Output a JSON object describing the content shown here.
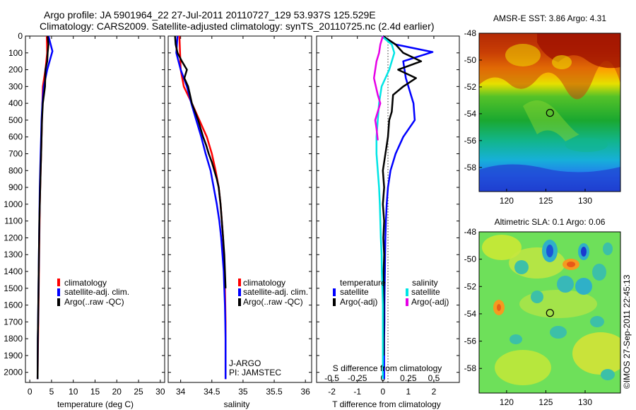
{
  "figure": {
    "title_line1": "Argo profile: JA 5901964_22 27-Jul-2011 20110727_129 53.937S 125.529E",
    "title_line2": "Climatology: CARS2009. Satellite-adjusted climatology: synTS_20110725.nc (2.4d earlier)",
    "credit": "©IMOS 27-Sep-2011 22:45:13",
    "float_info_line1": "J-ARGO",
    "float_info_line2": "PI: JAMSTEC"
  },
  "colors": {
    "climatology": "#ff0000",
    "satellite": "#0000ff",
    "argo": "#000000",
    "satellite_salinity": "#00e5e5",
    "argo_salinity": "#e600e6"
  },
  "chart_data": [
    {
      "id": "temperature",
      "type": "line",
      "xlabel": "temperature (deg C)",
      "ylabel": "",
      "xlim": [
        -1,
        31
      ],
      "ylim": [
        2060,
        0
      ],
      "xticks": [
        0,
        5,
        10,
        15,
        20,
        25,
        30
      ],
      "yticks": [
        0,
        100,
        200,
        300,
        400,
        500,
        600,
        700,
        800,
        900,
        1000,
        1100,
        1200,
        1300,
        1400,
        1500,
        1600,
        1700,
        1800,
        1900,
        2000
      ],
      "legend": [
        "climatology",
        "satellite-adj. clim.",
        "Argo(..raw -QC)"
      ],
      "legend_position": "lower-center",
      "series": [
        {
          "name": "climatology",
          "color": "#ff0000",
          "x": [
            3.9,
            4.0,
            3.6,
            3.0,
            2.9,
            2.8,
            2.7,
            2.6,
            2.5,
            2.4,
            2.3,
            2.25,
            2.2,
            2.15,
            2.1,
            2.05,
            2.0,
            1.95,
            1.9,
            1.85,
            1.8
          ],
          "y": [
            0,
            100,
            200,
            300,
            400,
            500,
            600,
            700,
            800,
            900,
            1000,
            1100,
            1200,
            1300,
            1400,
            1500,
            1600,
            1700,
            1800,
            1900,
            2040
          ]
        },
        {
          "name": "satellite-adj. clim.",
          "color": "#0000ff",
          "x": [
            4.3,
            4.8,
            5.2,
            4.0,
            3.2,
            2.9,
            2.7,
            2.6,
            2.5,
            2.4,
            2.3,
            2.25,
            2.2,
            2.15,
            2.1,
            2.05,
            2.0,
            1.95,
            1.9,
            1.85,
            1.8
          ],
          "y": [
            0,
            50,
            90,
            200,
            300,
            400,
            500,
            600,
            700,
            800,
            900,
            1000,
            1100,
            1200,
            1300,
            1400,
            1500,
            1600,
            1700,
            1800,
            2040
          ]
        },
        {
          "name": "Argo(..raw -QC)",
          "color": "#000000",
          "x": [
            4.1,
            4.3,
            4.1,
            4.0,
            3.6,
            3.5,
            3.0,
            2.8,
            2.7,
            2.6,
            2.5,
            2.4,
            2.3,
            2.2,
            2.15,
            2.1,
            2.05,
            2.0,
            1.95,
            1.9,
            1.85,
            1.8
          ],
          "y": [
            0,
            50,
            100,
            150,
            200,
            300,
            400,
            500,
            600,
            700,
            800,
            900,
            1000,
            1100,
            1200,
            1300,
            1400,
            1500,
            1600,
            1700,
            1800,
            2040
          ]
        }
      ]
    },
    {
      "id": "salinity",
      "type": "line",
      "xlabel": "salinity",
      "ylabel": "",
      "xlim": [
        33.8,
        36.1
      ],
      "ylim": [
        2060,
        0
      ],
      "xticks": [
        34,
        34.5,
        35,
        35.5,
        36
      ],
      "xticklabels": [
        "34",
        "34.5",
        "35",
        "35.5",
        "36"
      ],
      "legend": [
        "climatology",
        "satellite-adj. clim.",
        "Argo(..raw -QC)"
      ],
      "legend_position": "lower-center",
      "series": [
        {
          "name": "climatology",
          "color": "#ff0000",
          "x": [
            33.98,
            33.99,
            34.0,
            34.05,
            34.18,
            34.3,
            34.42,
            34.5,
            34.56,
            34.61,
            34.64,
            34.66,
            34.68,
            34.69,
            34.7,
            34.71,
            34.715,
            34.72,
            34.72,
            34.72,
            34.72
          ],
          "y": [
            0,
            100,
            200,
            300,
            400,
            500,
            600,
            700,
            800,
            900,
            1000,
            1100,
            1200,
            1300,
            1400,
            1500,
            1600,
            1700,
            1800,
            1900,
            2040
          ]
        },
        {
          "name": "satellite-adj. clim.",
          "color": "#0000ff",
          "x": [
            33.95,
            33.93,
            34.0,
            34.1,
            34.17,
            34.25,
            34.33,
            34.4,
            34.48,
            34.53,
            34.58,
            34.62,
            34.65,
            34.67,
            34.69,
            34.7,
            34.71,
            34.715,
            34.72,
            34.72,
            34.72
          ],
          "y": [
            0,
            100,
            200,
            300,
            400,
            500,
            600,
            700,
            800,
            900,
            1000,
            1100,
            1200,
            1300,
            1400,
            1500,
            1600,
            1700,
            1800,
            1900,
            2040
          ]
        },
        {
          "name": "Argo(..raw -QC)",
          "color": "#000000",
          "x": [
            33.91,
            33.92,
            33.95,
            34.02,
            34.1,
            34.06,
            34.12,
            34.15,
            34.18,
            34.23,
            34.28,
            34.32,
            34.36,
            34.41,
            34.45,
            34.5,
            34.54,
            34.58,
            34.61,
            34.64,
            34.66,
            34.68,
            34.7,
            34.71,
            34.72
          ],
          "y": [
            0,
            50,
            100,
            150,
            200,
            250,
            300,
            350,
            400,
            450,
            500,
            550,
            600,
            650,
            700,
            750,
            800,
            850,
            900,
            1000,
            1100,
            1200,
            1300,
            1400,
            1500
          ]
        }
      ]
    },
    {
      "id": "difference",
      "type": "line",
      "xlabel": "T difference from climatology",
      "x2label": "S difference from climatology",
      "ylabel": "",
      "xlim": [
        -2.6,
        3.0
      ],
      "ylim": [
        2060,
        0
      ],
      "xticks": [
        -2,
        -1,
        0,
        1,
        2
      ],
      "x2ticks": [
        -0.5,
        -0.25,
        0,
        0.25,
        0.5
      ],
      "x2ticklabels": [
        "-0.5",
        "-0.25",
        "0",
        "0.25",
        "0.5"
      ],
      "legend_temperature_title": "temperature",
      "legend_salinity_title": "salinity",
      "legend": [
        "satellite",
        "Argo(-adj)",
        "satellite",
        "Argo(-adj)"
      ],
      "legend_position": "lower-center",
      "series": [
        {
          "name": "satellite",
          "color": "#0000ff",
          "x": [
            0,
            0.5,
            1.95,
            0.8,
            0.9,
            1.2,
            1.25,
            0.8,
            0.5,
            0.3,
            0.2,
            0.15,
            0.12,
            0.1,
            0.09,
            0.08,
            0.07,
            0.06,
            0.06,
            0.05,
            0.05,
            0.05
          ],
          "y": [
            0,
            50,
            95,
            150,
            250,
            400,
            500,
            600,
            700,
            800,
            900,
            1000,
            1100,
            1200,
            1300,
            1400,
            1500,
            1600,
            1700,
            1800,
            1900,
            2040
          ]
        },
        {
          "name": "Argo(-adj)",
          "color": "#000000",
          "x": [
            0,
            0.5,
            0.8,
            1.5,
            0.6,
            1.3,
            0.8,
            0.4,
            0.35,
            0.25,
            0.2,
            0.1,
            0.0,
            0.05,
            0.0,
            0.05,
            0.02,
            0.05,
            0.03,
            0.03,
            0.03
          ],
          "y": [
            0,
            50,
            100,
            150,
            200,
            250,
            300,
            350,
            450,
            500,
            600,
            700,
            800,
            900,
            1000,
            1100,
            1200,
            1300,
            1400,
            1500,
            1900
          ]
        },
        {
          "name": "satellite",
          "color": "#00e5e5",
          "x": [
            -0.05,
            0.35,
            0.45,
            0.25,
            -0.05,
            -0.15,
            -0.2,
            -0.25,
            -0.25,
            -0.2,
            -0.15,
            -0.12,
            -0.1,
            -0.08,
            -0.05,
            -0.04,
            -0.02,
            0.0,
            0.0,
            0.0,
            0.0
          ],
          "y": [
            0,
            50,
            100,
            200,
            300,
            400,
            500,
            600,
            700,
            800,
            900,
            1000,
            1100,
            1200,
            1300,
            1400,
            1500,
            1600,
            1700,
            1800,
            2040
          ]
        },
        {
          "name": "Argo(-adj)",
          "color": "#e600e6",
          "x": [
            0,
            -0.1,
            -0.15,
            -0.25,
            -0.35,
            -0.2,
            -0.1,
            -0.3,
            -0.25,
            -0.2
          ],
          "y": [
            0,
            50,
            100,
            150,
            250,
            350,
            400,
            500,
            550,
            620
          ]
        }
      ]
    },
    {
      "id": "sst-map",
      "type": "heatmap",
      "title": "AMSR-E SST: 3.86  Argo: 4.31",
      "xlim": [
        116.5,
        134.5
      ],
      "ylim": [
        -59.8,
        -48.0
      ],
      "xticks": [
        120,
        125,
        130
      ],
      "yticks": [
        -48,
        -50,
        -52,
        -54,
        -56,
        -58
      ],
      "marker": {
        "lon": 125.529,
        "lat": -53.937
      }
    },
    {
      "id": "sla-map",
      "type": "heatmap",
      "title": "Altimetric SLA: 0.1  Argo: 0.06",
      "xlim": [
        116.5,
        134.5
      ],
      "ylim": [
        -59.8,
        -48.0
      ],
      "xticks": [
        120,
        125,
        130
      ],
      "yticks": [
        -48,
        -50,
        -52,
        -54,
        -56,
        -58
      ],
      "marker": {
        "lon": 125.529,
        "lat": -53.937
      }
    }
  ]
}
